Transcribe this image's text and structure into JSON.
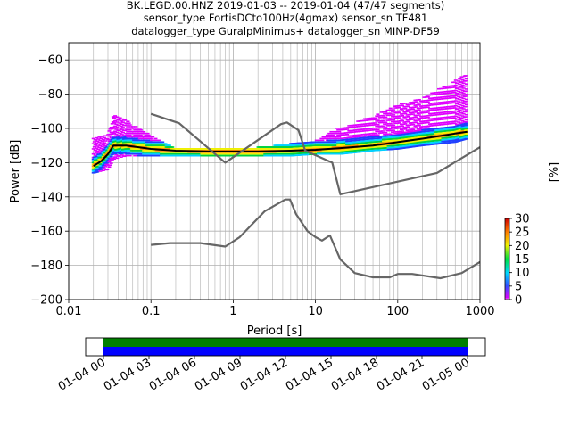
{
  "title_lines": [
    "BK.LEGD.00.HNZ   2019-01-03 -- 2019-01-04  (47/47 segments)",
    "sensor_type FortisDCto100Hz(4gmax) sensor_sn TF481",
    "datalogger_type GuralpMinimus+ datalogger_sn MINP-DF59"
  ],
  "chart_data": [
    {
      "type": "heatmap",
      "xlabel": "Period [s]",
      "ylabel": "Power [dB]",
      "x_scale": "log",
      "xlim": [
        0.01,
        1000
      ],
      "ylim": [
        -200,
        -50
      ],
      "x_ticks": [
        0.01,
        0.1,
        1,
        10,
        100,
        1000
      ],
      "x_tick_labels": [
        "0.01",
        "0.1",
        "1",
        "10",
        "100",
        "1000"
      ],
      "y_ticks": [
        -200,
        -180,
        -160,
        -140,
        -120,
        -100,
        -80,
        -60
      ],
      "y_tick_labels": [
        "−200",
        "−180",
        "−160",
        "−140",
        "−120",
        "−100",
        "−80",
        "−60"
      ],
      "grid": true,
      "colorbar": {
        "label": "[%]",
        "range": [
          0,
          30
        ],
        "ticks": [
          0,
          5,
          10,
          15,
          20,
          25,
          30
        ],
        "tick_labels": [
          "0",
          "5",
          "10",
          "15",
          "20",
          "25",
          "30"
        ]
      },
      "series": [
        {
          "color": "#000000",
          "x": [
            0.02,
            0.025,
            0.03,
            0.035,
            0.05,
            0.1,
            0.2,
            0.5,
            1,
            2,
            5,
            10,
            20,
            50,
            100,
            200,
            500,
            700
          ],
          "y": [
            -122,
            -119,
            -115,
            -110,
            -110,
            -112,
            -113,
            -113.5,
            -113.5,
            -113.5,
            -113,
            -112.5,
            -111.5,
            -110,
            -108,
            -106,
            -103,
            -102
          ]
        },
        {
          "color": "#666666",
          "x": [
            0.1,
            0.22,
            0.8,
            3.8,
            4.5,
            6.2,
            7.5,
            16,
            20,
            300,
            1000
          ],
          "y": [
            -91.5,
            -97,
            -120,
            -97.5,
            -96.5,
            -101,
            -113,
            -120,
            -138.5,
            -126,
            -111
          ]
        },
        {
          "color": "#666666",
          "x": [
            0.1,
            0.17,
            0.4,
            0.8,
            1.2,
            2.4,
            4.3,
            4.9,
            5.8,
            8,
            10,
            12,
            15,
            20,
            30,
            50,
            80,
            100,
            150,
            330,
            600,
            1000
          ],
          "y": [
            -168,
            -167,
            -167,
            -169,
            -163.5,
            -148.5,
            -141.5,
            -141.5,
            -150,
            -160,
            -163.5,
            -165.5,
            -162.5,
            -176.5,
            -184.5,
            -187,
            -187,
            -185,
            -185,
            -187.5,
            -184.5,
            -178
          ]
        }
      ],
      "density_cloud": {
        "x": [
          0.02,
          0.03,
          0.035,
          0.05,
          0.1,
          0.2,
          0.5,
          1,
          2,
          5,
          10,
          20,
          50,
          100,
          200,
          500,
          700
        ],
        "upper": [
          -106,
          -104,
          -92,
          -95,
          -104,
          -112,
          -112,
          -112,
          -111,
          -109,
          -107,
          -99,
          -93,
          -86,
          -82,
          -72,
          -68
        ],
        "lower": [
          -126,
          -124,
          -118,
          -116,
          -116,
          -116,
          -116,
          -116,
          -116,
          -116,
          -115,
          -115,
          -113,
          -112,
          -110,
          -108,
          -106
        ]
      }
    },
    {
      "type": "timeline",
      "x_ticks": [
        "01-04 00",
        "01-04 03",
        "01-04 06",
        "01-04 09",
        "01-04 12",
        "01-04 15",
        "01-04 18",
        "01-04 21",
        "01-05 00"
      ],
      "coverage": [
        {
          "color": "#008000",
          "start_h": 0,
          "end_h": 24
        },
        {
          "color": "#0000ff",
          "start_h": 0,
          "end_h": 24
        }
      ]
    }
  ]
}
